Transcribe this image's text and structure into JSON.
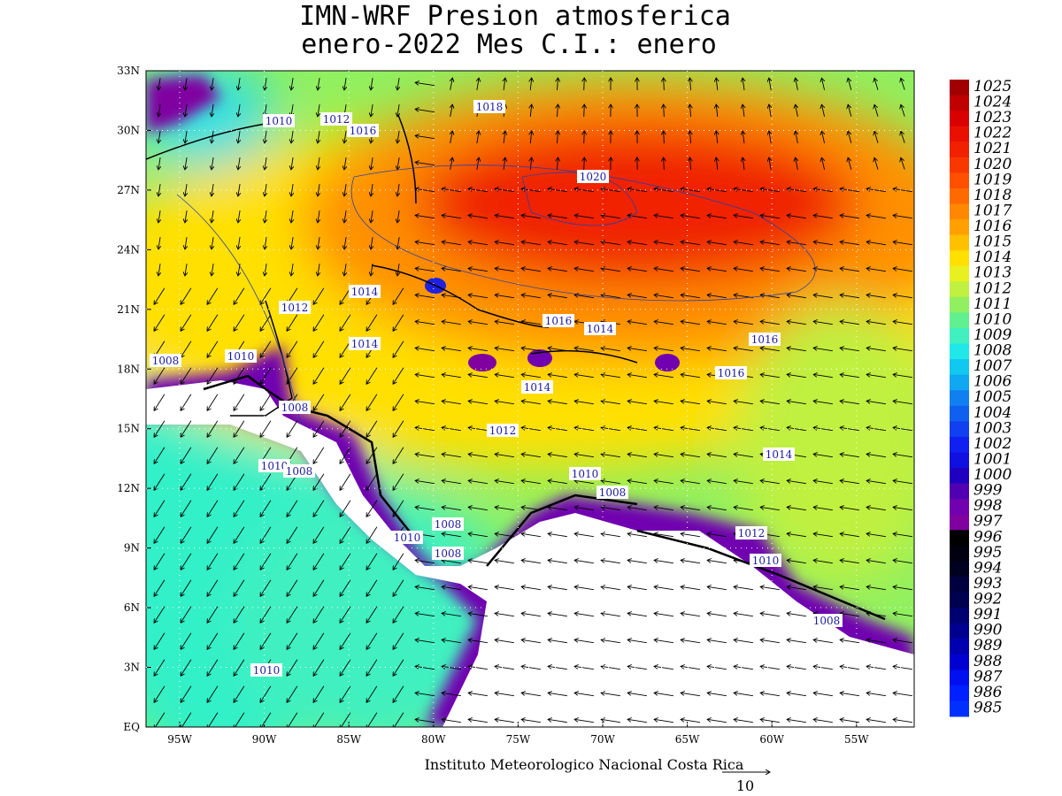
{
  "title": [
    "IMN-WRF  Presion atmosferica",
    "enero-2022 Mes C.I.: enero"
  ],
  "lat_labels": [
    "33N",
    "30N",
    "27N",
    "24N",
    "21N",
    "18N",
    "15N",
    "12N",
    "9N",
    "6N",
    "3N",
    "EQ"
  ],
  "lon_labels": [
    "95W",
    "90W",
    "85W",
    "80W",
    "75W",
    "70W",
    "65W",
    "60W",
    "55W"
  ],
  "colorbar": [
    1025,
    1024,
    1023,
    1022,
    1021,
    1020,
    1019,
    1018,
    1017,
    1016,
    1015,
    1014,
    1013,
    1012,
    1011,
    1010,
    1009,
    1008,
    1007,
    1006,
    1005,
    1004,
    1003,
    1002,
    1001,
    1000,
    999,
    998,
    997,
    996,
    995,
    994,
    993,
    992,
    991,
    990,
    989,
    988,
    987,
    986,
    985
  ],
  "contour_labels": [
    "1010",
    "1012",
    "1016",
    "1018",
    "1020",
    "1014",
    "1012",
    "1014",
    "1008",
    "1010",
    "1016",
    "1014",
    "1016",
    "1014",
    "1016",
    "1008",
    "1012",
    "1014",
    "1010",
    "1008",
    "1010",
    "1008",
    "1008",
    "1010",
    "1012",
    "1008",
    "1010",
    "1008",
    "1010"
  ],
  "footer": "Instituto Meteorologico Nacional Costa Rica",
  "vector_scale": "10"
}
